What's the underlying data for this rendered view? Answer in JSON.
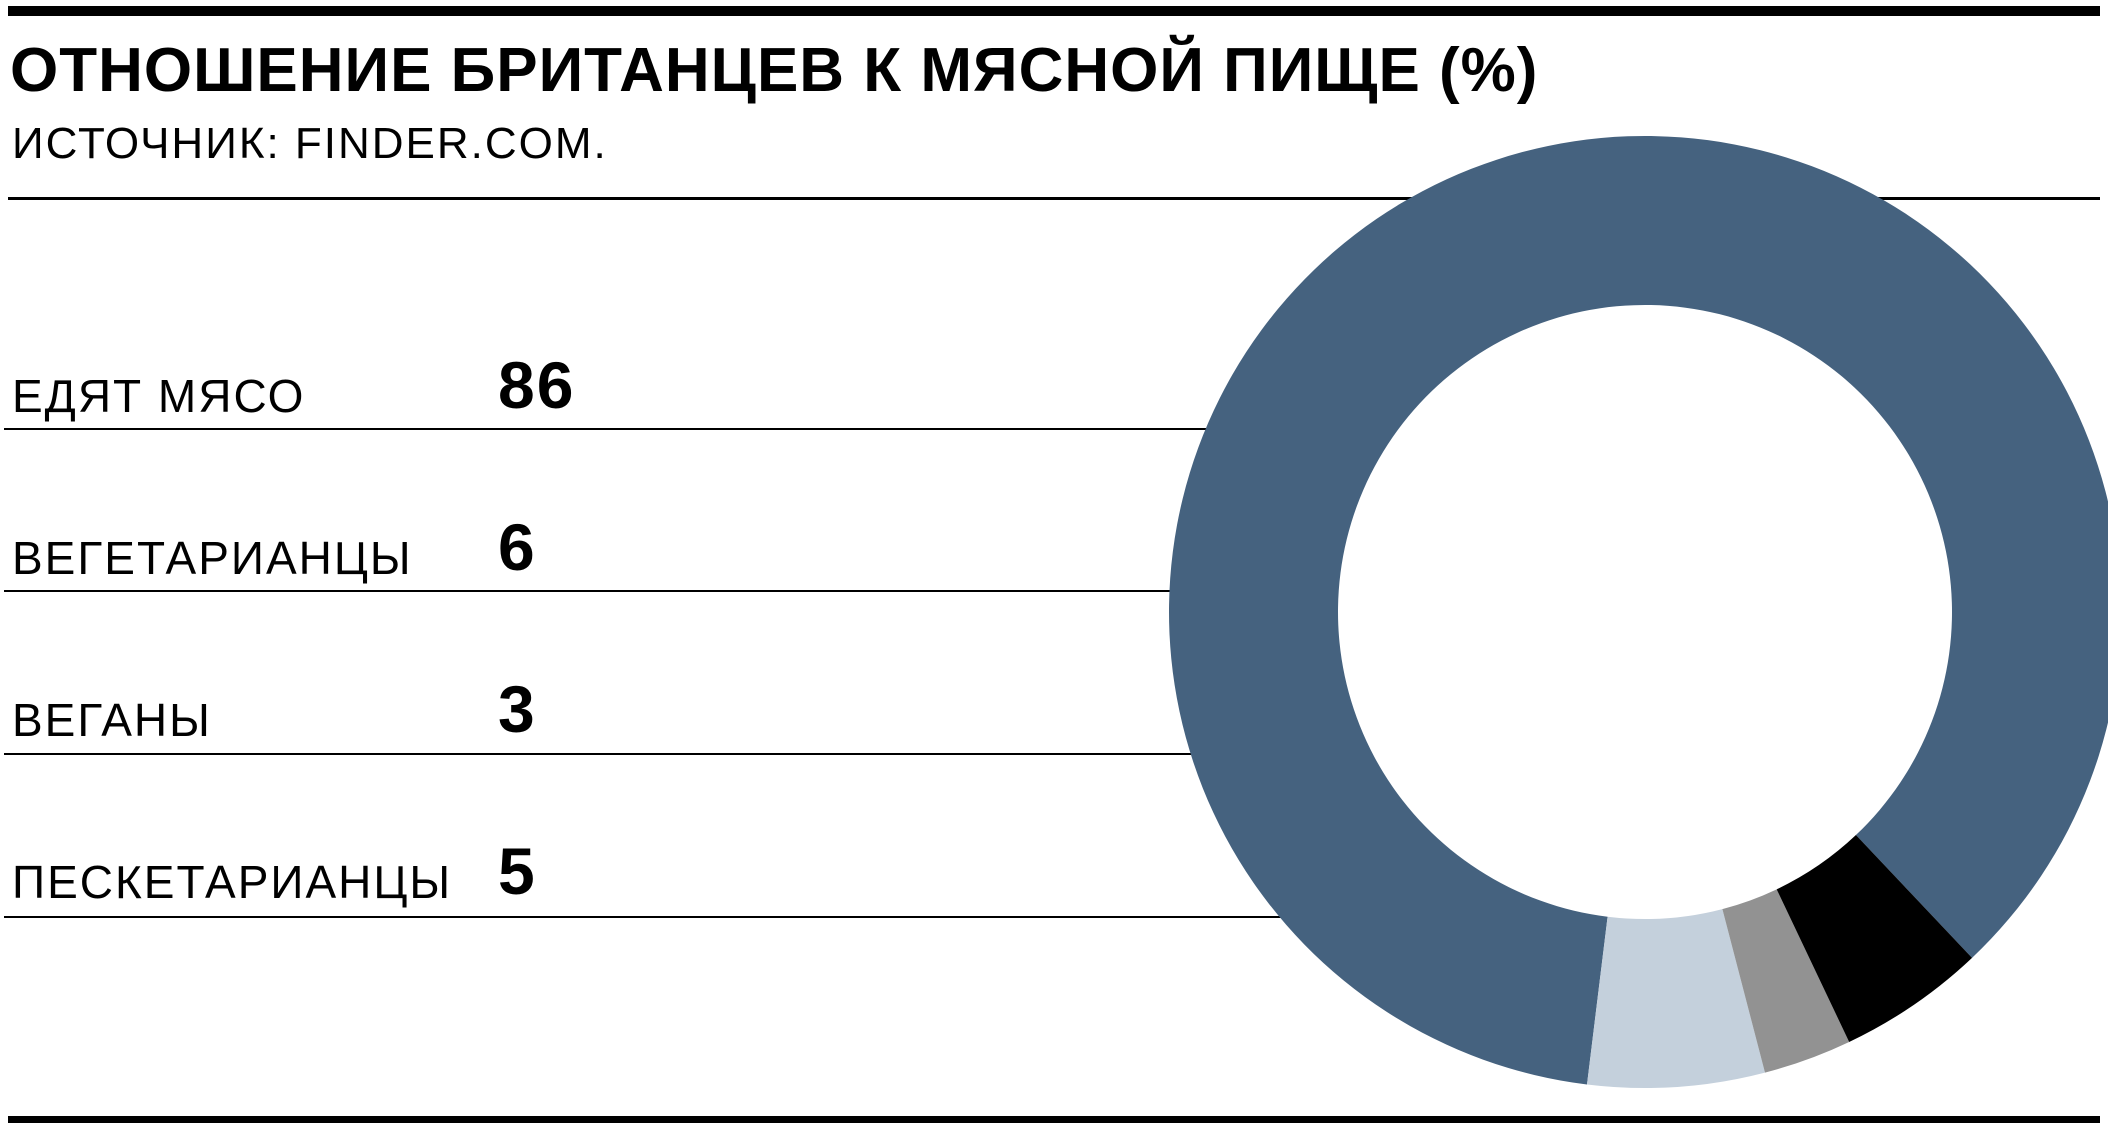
{
  "header": {
    "title": "ОТНОШЕНИЕ БРИТАНЦЕВ К МЯСНОЙ ПИЩЕ (%)",
    "source": "ИСТОЧНИК: FINDER.COM."
  },
  "chart_data": {
    "type": "pie",
    "variant": "donut",
    "title": "ОТНОШЕНИЕ БРИТАНЦЕВ К МЯСНОЙ ПИЩЕ (%)",
    "subtitle": "ИСТОЧНИК: FINDER.COM.",
    "categories": [
      "ЕДЯТ МЯСО",
      "ВЕГЕТАРИАНЦЫ",
      "ВЕГАНЫ",
      "ПЕСКЕТАРИАНЦЫ"
    ],
    "values": [
      86,
      6,
      3,
      5
    ],
    "value_labels": [
      "86",
      "6",
      "3",
      "5"
    ],
    "colors": [
      "#45627f",
      "#c4d0dc",
      "#929292",
      "#000000"
    ],
    "legend": "left"
  }
}
